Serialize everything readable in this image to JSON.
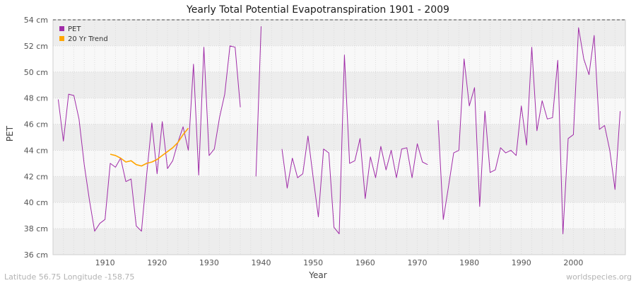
{
  "page": {
    "title": "Yearly Total Potential Evapotranspiration 1901 - 2009",
    "footer_left": "Latitude 56.75 Longitude -158.75",
    "footer_right": "worldspecies.org"
  },
  "chart_data": {
    "type": "line",
    "title": "Yearly Total Potential Evapotranspiration 1901 - 2009",
    "xlabel": "Year",
    "ylabel": "PET",
    "ylim": [
      36,
      54
    ],
    "xlim": [
      1900,
      2010
    ],
    "y_tick_step": 2,
    "y_tick_suffix": " cm",
    "x_ticks": [
      1910,
      1920,
      1930,
      1940,
      1950,
      1960,
      1970,
      1980,
      1990,
      2000
    ],
    "grid": true,
    "legend_position": "top-left",
    "colors": {
      "band_dark": "#ededed",
      "band_light": "#f8f8f8",
      "grid_line": "#dcdcdc",
      "frame": "#cfcfcf",
      "top_border": "#444444",
      "tick_text": "#555555"
    },
    "series": [
      {
        "name": "PET",
        "color": "#A02CA8",
        "width": 1,
        "start_year": 1901,
        "values": [
          47.9,
          44.7,
          48.3,
          48.2,
          46.4,
          42.9,
          40.2,
          37.8,
          38.4,
          38.7,
          43.0,
          42.7,
          43.4,
          41.6,
          41.8,
          38.2,
          37.8,
          42.1,
          46.1,
          42.2,
          46.2,
          42.6,
          43.2,
          44.6,
          45.8,
          44.0,
          50.6,
          42.1,
          51.9,
          43.6,
          44.1,
          46.5,
          48.3,
          52.0,
          51.9,
          47.3,
          null,
          null,
          42.0,
          53.5,
          null,
          null,
          null,
          44.1,
          41.1,
          43.4,
          41.9,
          42.2,
          45.1,
          41.9,
          38.9,
          44.1,
          43.8,
          38.1,
          37.6,
          51.3,
          43.0,
          43.2,
          44.9,
          40.3,
          43.5,
          41.9,
          44.3,
          42.5,
          44.0,
          41.9,
          44.1,
          44.2,
          41.9,
          44.5,
          43.1,
          42.9,
          null,
          46.3,
          38.7,
          41.2,
          43.8,
          44.0,
          51.0,
          47.4,
          48.8,
          39.7,
          47.0,
          42.3,
          42.5,
          44.2,
          43.8,
          44.0,
          43.6,
          47.4,
          44.4,
          51.9,
          45.5,
          47.8,
          46.4,
          46.5,
          50.9,
          37.6,
          44.9,
          45.2,
          53.4,
          51.0,
          49.8,
          52.8,
          45.6,
          45.9,
          44.0,
          41.0,
          47.0
        ]
      },
      {
        "name": "20 Yr Trend",
        "color": "#FFA500",
        "width": 1.6,
        "start_year": 1911,
        "values": [
          43.7,
          43.6,
          43.4,
          43.1,
          43.2,
          42.9,
          42.8,
          43.0,
          43.1,
          43.3,
          43.6,
          43.9,
          44.2,
          44.6,
          45.2,
          45.7
        ]
      }
    ]
  }
}
